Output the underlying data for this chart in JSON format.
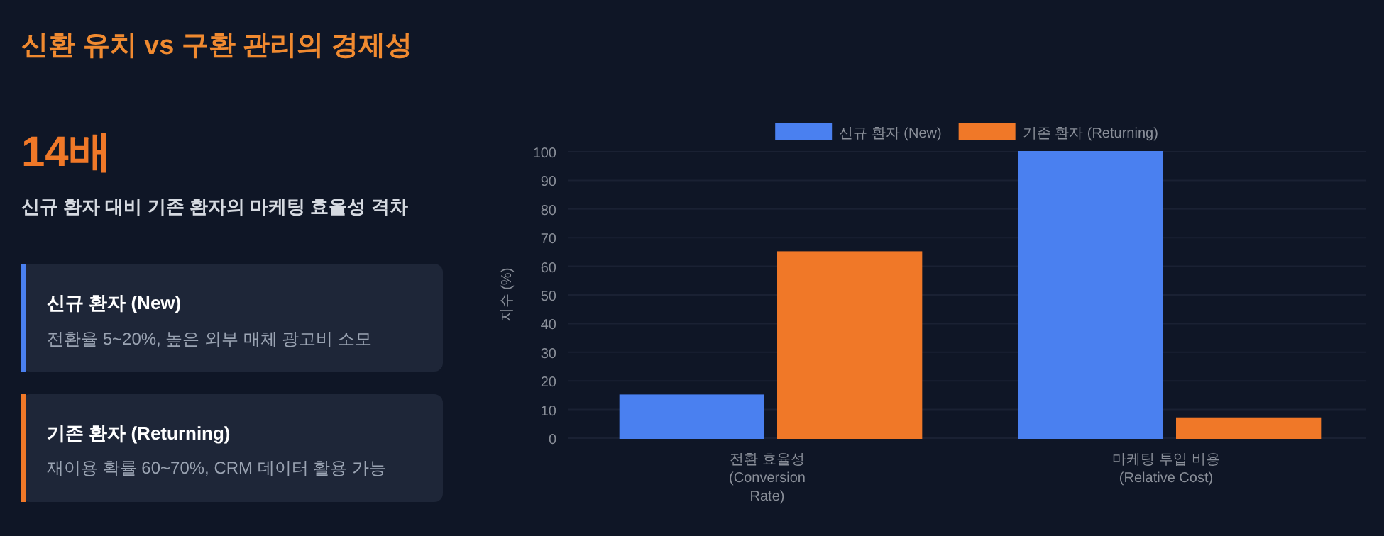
{
  "chart_data": [
    {
      "type": "other",
      "title": "신환 유치 vs 구환 관리의 경제성",
      "annotations": [
        "14배",
        "신규 환자 대비 기존 환자의 마케팅 효율성 격차",
        "신규 환자 (New)",
        "전환율 5~20%, 높은 외부 매체 광고비 소모",
        "기존 환자 (Returning)",
        "재이용 확률 60~70%, CRM 데이터 활용 가능"
      ]
    },
    {
      "type": "bar",
      "categories": [
        "전환 효율성\n(Conversion\nRate)",
        "마케팅 투입 비용\n(Relative Cost)"
      ],
      "ylabel": "지수 (%)",
      "ylim": [
        0,
        100
      ],
      "yticks": [
        0,
        10,
        20,
        30,
        40,
        50,
        60,
        70,
        80,
        90,
        100
      ],
      "grid": "y",
      "legend": "top",
      "series": [
        {
          "name": "신규 환자 (New)",
          "color": "#4a80f0",
          "values": [
            15,
            100
          ]
        },
        {
          "name": "기존 환자 (Returning)",
          "color": "#f07828",
          "values": [
            65,
            7
          ]
        }
      ]
    }
  ]
}
